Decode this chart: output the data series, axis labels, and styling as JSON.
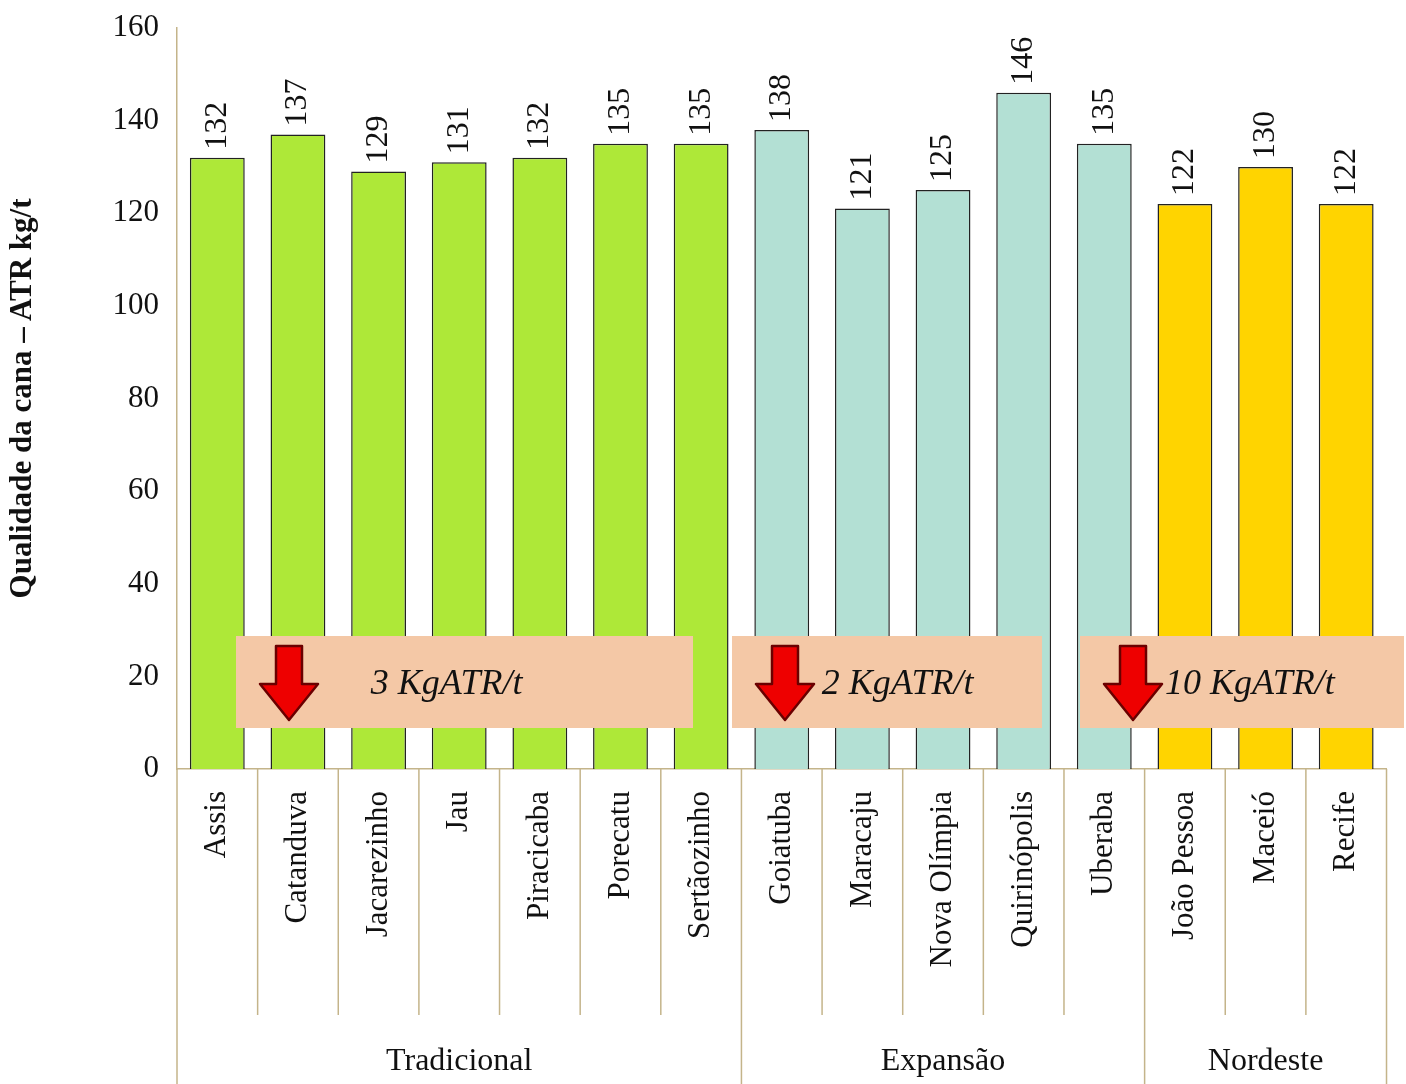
{
  "chart_data": {
    "type": "bar",
    "ylabel": "Qualidade da cana – ATR kg/t",
    "categories": [
      "Assis",
      "Catanduva",
      "Jacarezinho",
      "Jau",
      "Piracicaba",
      "Porecatu",
      "Sertãozinho",
      "Goiatuba",
      "Maracaju",
      "Nova Olímpia",
      "Quirinópolis",
      "Uberaba",
      "João Pessoa",
      "Maceió",
      "Recife"
    ],
    "values": [
      132,
      137,
      129,
      131,
      132,
      135,
      135,
      138,
      121,
      125,
      146,
      135,
      122,
      130,
      122
    ],
    "colors": [
      "#aee838",
      "#aee838",
      "#aee838",
      "#aee838",
      "#aee838",
      "#aee838",
      "#aee838",
      "#b3e0d4",
      "#b3e0d4",
      "#b3e0d4",
      "#b3e0d4",
      "#b3e0d4",
      "#ffd400",
      "#ffd400",
      "#ffd400"
    ],
    "ylim": [
      0,
      160
    ],
    "yticks": [
      0,
      20,
      40,
      60,
      80,
      100,
      120,
      140,
      160
    ],
    "grid": false,
    "legend": false,
    "data_labels": true,
    "annotations": [
      "Tradicional",
      "Expansão",
      "Nordeste",
      "3 KgATR/t",
      "2 KgATR/t",
      "10 KgATR/t"
    ]
  }
}
